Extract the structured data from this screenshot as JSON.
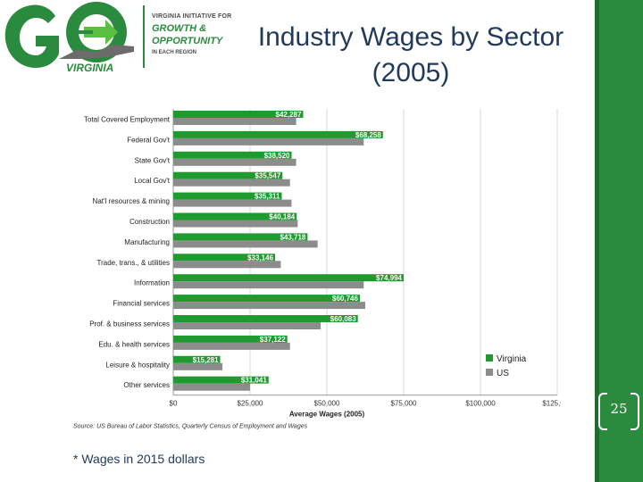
{
  "logo": {
    "mark_text": "GO",
    "state_text": "VIRGINIA",
    "line1": "VIRGINIA INITIATIVE FOR",
    "line2": "GROWTH &",
    "line3": "OPPORTUNITY",
    "line4": "IN EACH REGION",
    "colors": {
      "green": "#2a8a3e",
      "gray": "#4a4a4a"
    }
  },
  "slide": {
    "title": "Industry Wages by Sector (2005)",
    "footnote": "* Wages in 2015 dollars",
    "page_number": "25",
    "colors": {
      "band": "#2a8a3e",
      "title": "#1f3a5a"
    }
  },
  "chart_data": {
    "type": "bar",
    "orientation": "horizontal",
    "categories": [
      "Total Covered Employment",
      "Federal Gov't",
      "State Gov't",
      "Local Gov't",
      "Nat'l resources & mining",
      "Construction",
      "Manufacturing",
      "Trade, trans., & utilities",
      "Information",
      "Financial services",
      "Prof. & business services",
      "Edu. & health services",
      "Leisure & hospitality",
      "Other services"
    ],
    "series": [
      {
        "name": "Virginia",
        "color": "#1e9a2e",
        "values": [
          42287,
          68258,
          38520,
          35547,
          35311,
          40184,
          43718,
          33146,
          74994,
          60746,
          60083,
          37122,
          15281,
          31041
        ],
        "labels": [
          "$42,287",
          "$68,258",
          "$38,520",
          "$35,547",
          "$35,311",
          "$40,184",
          "$43,718",
          "$33,146",
          "$74,994",
          "$60,746",
          "$60,083",
          "$37,122",
          "$15,281",
          "$31,041"
        ]
      },
      {
        "name": "US",
        "color": "#8c8c8c",
        "values": [
          40000,
          62000,
          40000,
          38000,
          38500,
          40500,
          47000,
          35000,
          62000,
          62500,
          48000,
          38000,
          16000,
          25000
        ]
      }
    ],
    "xlabel": "Average Wages (2005)",
    "x_ticks": [
      "$0",
      "$25,000",
      "$50,000",
      "$75,000",
      "$100,000",
      "$125,000"
    ],
    "x_tick_values": [
      0,
      25000,
      50000,
      75000,
      100000,
      125000
    ],
    "xlim": [
      0,
      125000
    ],
    "grid": true,
    "legend": "right",
    "source": "Source: US Bureau of Labor Statistics, Quarterly Census of Employment and Wages"
  }
}
